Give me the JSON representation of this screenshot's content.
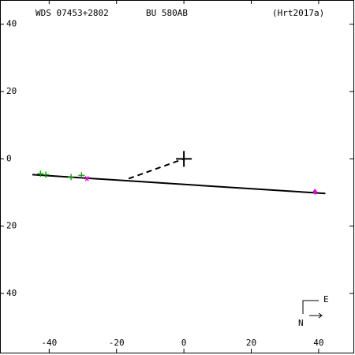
{
  "chart_data": {
    "type": "scatter",
    "header": {
      "left": "WDS 07453+2802",
      "center": "BU  580AB",
      "right": "(Hrt2017a)"
    },
    "xlim": [
      -54.6,
      50.8
    ],
    "ylim": [
      -58.3,
      47.2
    ],
    "xticks": [
      -40,
      -20,
      0,
      20,
      40
    ],
    "yticks": [
      40,
      20,
      0,
      {
        "value": -20,
        "label": "20"
      },
      {
        "value": -40,
        "label": "40"
      }
    ],
    "series": [
      {
        "color": "#00a000",
        "marker": "plus",
        "x": [
          -42.6,
          -41.0,
          -33.5,
          -30.4
        ],
        "values": [
          -4.4,
          -4.7,
          -5.4,
          -4.9
        ]
      },
      {
        "color": "#e000e0",
        "marker": "star",
        "x": [
          -28.8
        ],
        "values": [
          -5.9
        ]
      },
      {
        "color": "#e000e0",
        "marker": "dot",
        "x": [
          38.9
        ],
        "values": [
          -9.8
        ]
      }
    ],
    "orbit": {
      "color": "#000000",
      "x": [
        -45,
        42
      ],
      "values": [
        -4.7,
        -10.3
      ]
    },
    "residual": {
      "color": "#000000",
      "x": [
        -16.4,
        0
      ],
      "values": [
        -5.9,
        0
      ]
    },
    "primary": {
      "x": 0,
      "y": 0
    },
    "compass": {
      "east": "E",
      "north": "N"
    }
  }
}
